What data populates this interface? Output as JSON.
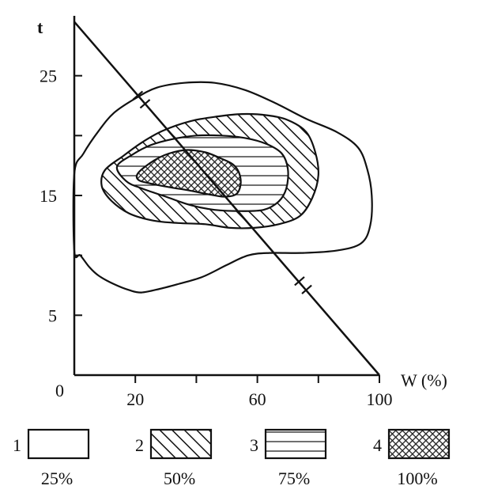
{
  "chart_data": {
    "type": "contour",
    "xlabel": "W (%)",
    "ylabel": "t",
    "origin_label": "0",
    "xlim": [
      0,
      100
    ],
    "ylim": [
      0,
      30
    ],
    "x_ticks": [
      {
        "value": 20,
        "label": "20"
      },
      {
        "value": 40,
        "label": ""
      },
      {
        "value": 60,
        "label": "60"
      },
      {
        "value": 80,
        "label": ""
      },
      {
        "value": 100,
        "label": "100"
      }
    ],
    "y_ticks": [
      {
        "value": 5,
        "label": "5"
      },
      {
        "value": 10,
        "label": ""
      },
      {
        "value": 15,
        "label": "15"
      },
      {
        "value": 20,
        "label": ""
      },
      {
        "value": 25,
        "label": "25"
      }
    ],
    "diagonal_line": {
      "from": [
        0,
        29.5
      ],
      "to": [
        100,
        0
      ]
    },
    "diagonal_marks": [
      [
        22,
        23
      ],
      [
        75,
        7.5
      ]
    ],
    "regions": [
      {
        "id": "1",
        "level": "25%",
        "pattern": "empty",
        "points": [
          [
            0,
            16.8
          ],
          [
            3,
            18.5
          ],
          [
            8,
            20.4
          ],
          [
            13,
            21.9
          ],
          [
            20,
            23.1
          ],
          [
            27,
            24.0
          ],
          [
            36,
            24.4
          ],
          [
            46,
            24.4
          ],
          [
            56,
            23.8
          ],
          [
            66,
            22.7
          ],
          [
            76,
            21.4
          ],
          [
            86,
            20.3
          ],
          [
            93,
            19.0
          ],
          [
            96,
            17.2
          ],
          [
            97.5,
            15.0
          ],
          [
            97,
            12.5
          ],
          [
            94,
            11.0
          ],
          [
            86,
            10.4
          ],
          [
            75,
            10.2
          ],
          [
            64,
            10.2
          ],
          [
            57,
            10.0
          ],
          [
            50,
            9.2
          ],
          [
            42,
            8.2
          ],
          [
            34,
            7.6
          ],
          [
            28,
            7.2
          ],
          [
            22,
            6.9
          ],
          [
            18,
            7.1
          ],
          [
            13,
            7.6
          ],
          [
            8,
            8.3
          ],
          [
            5,
            9.0
          ],
          [
            2,
            10.0
          ],
          [
            0,
            10.4
          ]
        ]
      },
      {
        "id": "2",
        "level": "50%",
        "pattern": "diagonal-hatch",
        "points": [
          [
            10,
            17.1
          ],
          [
            16,
            18.3
          ],
          [
            22,
            19.4
          ],
          [
            29,
            20.4
          ],
          [
            38,
            21.2
          ],
          [
            47,
            21.6
          ],
          [
            55,
            21.8
          ],
          [
            63,
            21.7
          ],
          [
            70,
            21.3
          ],
          [
            76,
            20.3
          ],
          [
            79,
            18.6
          ],
          [
            80,
            16.7
          ],
          [
            78,
            14.8
          ],
          [
            74,
            13.3
          ],
          [
            67,
            12.6
          ],
          [
            59,
            12.3
          ],
          [
            51,
            12.3
          ],
          [
            43,
            12.6
          ],
          [
            34,
            12.7
          ],
          [
            26,
            12.9
          ],
          [
            18,
            13.5
          ],
          [
            12,
            14.6
          ],
          [
            9,
            15.8
          ]
        ]
      },
      {
        "id": "3",
        "level": "75%",
        "pattern": "horizontal-lines",
        "points": [
          [
            14,
            17.4
          ],
          [
            19,
            18.4
          ],
          [
            25,
            19.2
          ],
          [
            32,
            19.7
          ],
          [
            40,
            20.0
          ],
          [
            48,
            20.0
          ],
          [
            56,
            19.8
          ],
          [
            63,
            19.3
          ],
          [
            68,
            18.5
          ],
          [
            70,
            17.2
          ],
          [
            69.5,
            15.6
          ],
          [
            67,
            14.5
          ],
          [
            62,
            13.8
          ],
          [
            54,
            13.7
          ],
          [
            46,
            13.8
          ],
          [
            38,
            14.2
          ],
          [
            30,
            14.9
          ],
          [
            22,
            15.6
          ],
          [
            17,
            16.2
          ]
        ]
      },
      {
        "id": "4",
        "level": "100%",
        "pattern": "cross-hatch",
        "points": [
          [
            21,
            16.9
          ],
          [
            26,
            17.9
          ],
          [
            31,
            18.5
          ],
          [
            37,
            18.8
          ],
          [
            43,
            18.6
          ],
          [
            48,
            18.1
          ],
          [
            52,
            17.6
          ],
          [
            54,
            16.9
          ],
          [
            54.5,
            15.9
          ],
          [
            53,
            15.1
          ],
          [
            49,
            14.9
          ],
          [
            44,
            15.1
          ],
          [
            38,
            15.4
          ],
          [
            31,
            15.7
          ],
          [
            25,
            16.0
          ],
          [
            21,
            16.3
          ]
        ]
      }
    ]
  },
  "legend": {
    "items": [
      {
        "number": "1",
        "pattern": "empty",
        "label": "25%"
      },
      {
        "number": "2",
        "pattern": "diagonal-hatch",
        "label": "50%"
      },
      {
        "number": "3",
        "pattern": "horizontal-lines",
        "label": "75%"
      },
      {
        "number": "4",
        "pattern": "cross-hatch",
        "label": "100%"
      }
    ]
  },
  "colors": {
    "ink": "#111111",
    "paper": "#ffffff",
    "cross_fill": "#3a3a3a"
  }
}
